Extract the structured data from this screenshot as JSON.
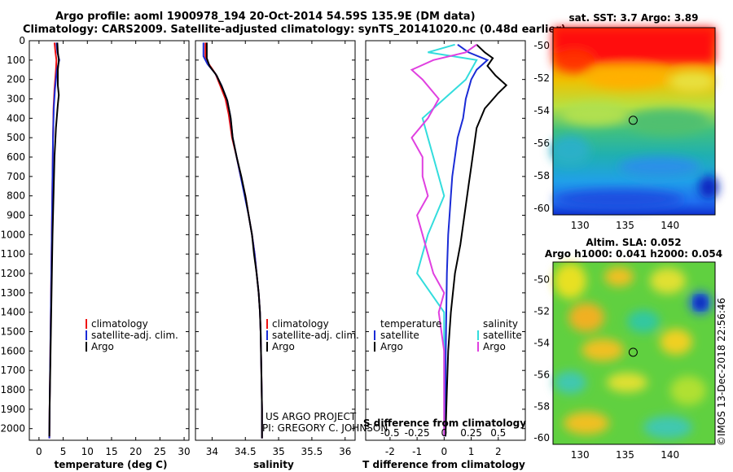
{
  "header": {
    "line1": "Argo profile: aoml 1900978_194 20-Oct-2014 54.59S 135.9E (DM data)",
    "line2": "Climatology: CARS2009. Satellite-adjusted climatology: synTS_20141020.nc (0.48d earlier)"
  },
  "credits": {
    "project": "US ARGO PROJECT",
    "pi": "PI: GREGORY C. JOHNSON",
    "imos": "©IMOS 13-Dec-2018 22:56:46"
  },
  "colors": {
    "argo": "#000000",
    "clim": "#ee1111",
    "sat": "#1a2bd6",
    "sal_sat": "#33dddd",
    "sal_argo": "#e040e0"
  },
  "chart_data": [
    {
      "type": "line",
      "panel": "temperature",
      "xlabel": "temperature (deg C)",
      "xlim": [
        -2,
        31
      ],
      "ylim": [
        2060,
        0
      ],
      "xticks": [
        0,
        5,
        10,
        15,
        20,
        25,
        30
      ],
      "yticks": [
        0,
        100,
        200,
        300,
        400,
        500,
        600,
        700,
        800,
        900,
        1000,
        1100,
        1200,
        1300,
        1400,
        1500,
        1600,
        1700,
        1800,
        1900,
        2000
      ],
      "legend": [
        "climatology",
        "satellite-adj. clim.",
        "Argo"
      ],
      "series": [
        {
          "name": "climatology",
          "color": "#ee1111",
          "points": [
            [
              3.2,
              10
            ],
            [
              3.4,
              60
            ],
            [
              3.6,
              100
            ],
            [
              3.5,
              150
            ],
            [
              3.2,
              250
            ],
            [
              3.0,
              350
            ],
            [
              2.9,
              500
            ],
            [
              2.8,
              700
            ],
            [
              2.7,
              900
            ],
            [
              2.6,
              1100
            ],
            [
              2.5,
              1300
            ],
            [
              2.4,
              1500
            ],
            [
              2.3,
              1700
            ],
            [
              2.2,
              1900
            ],
            [
              2.15,
              2050
            ]
          ]
        },
        {
          "name": "satellite-adj. clim.",
          "color": "#1a2bd6",
          "points": [
            [
              3.6,
              10
            ],
            [
              3.8,
              60
            ],
            [
              4.2,
              100
            ],
            [
              3.7,
              150
            ],
            [
              3.3,
              250
            ],
            [
              3.05,
              350
            ],
            [
              2.9,
              500
            ],
            [
              2.8,
              700
            ],
            [
              2.7,
              900
            ],
            [
              2.6,
              1100
            ],
            [
              2.5,
              1300
            ],
            [
              2.4,
              1500
            ],
            [
              2.3,
              1700
            ],
            [
              2.2,
              1900
            ],
            [
              2.15,
              2050
            ]
          ]
        },
        {
          "name": "Argo",
          "color": "#000000",
          "points": [
            [
              3.8,
              10
            ],
            [
              3.9,
              60
            ],
            [
              4.1,
              100
            ],
            [
              3.9,
              150
            ],
            [
              3.9,
              230
            ],
            [
              4.1,
              280
            ],
            [
              3.9,
              330
            ],
            [
              3.5,
              450
            ],
            [
              3.2,
              600
            ],
            [
              3.0,
              800
            ],
            [
              2.8,
              1000
            ],
            [
              2.6,
              1300
            ],
            [
              2.4,
              1600
            ],
            [
              2.2,
              1900
            ],
            [
              2.15,
              2040
            ]
          ]
        }
      ]
    },
    {
      "type": "line",
      "panel": "salinity",
      "xlabel": "salinity",
      "xlim": [
        33.75,
        36.15
      ],
      "ylim": [
        2060,
        0
      ],
      "xticks": [
        34,
        34.5,
        35,
        35.5,
        36
      ],
      "legend": [
        "climatology",
        "satellite-adj. clim.",
        "Argo"
      ],
      "series": [
        {
          "name": "climatology",
          "color": "#ee1111",
          "points": [
            [
              33.9,
              10
            ],
            [
              33.9,
              80
            ],
            [
              33.95,
              120
            ],
            [
              34.05,
              170
            ],
            [
              34.12,
              230
            ],
            [
              34.2,
              300
            ],
            [
              34.25,
              380
            ],
            [
              34.3,
              500
            ],
            [
              34.37,
              600
            ],
            [
              34.43,
              700
            ],
            [
              34.5,
              800
            ],
            [
              34.55,
              900
            ],
            [
              34.6,
              1000
            ],
            [
              34.64,
              1100
            ],
            [
              34.67,
              1200
            ],
            [
              34.7,
              1300
            ],
            [
              34.72,
              1400
            ],
            [
              34.73,
              1500
            ],
            [
              34.74,
              1700
            ],
            [
              34.75,
              1900
            ],
            [
              34.75,
              2050
            ]
          ]
        },
        {
          "name": "satellite-adj. clim.",
          "color": "#1a2bd6",
          "points": [
            [
              33.87,
              10
            ],
            [
              33.87,
              80
            ],
            [
              33.93,
              120
            ],
            [
              34.05,
              170
            ],
            [
              34.14,
              230
            ],
            [
              34.22,
              300
            ],
            [
              34.27,
              380
            ],
            [
              34.31,
              500
            ],
            [
              34.37,
              600
            ],
            [
              34.43,
              700
            ],
            [
              34.49,
              800
            ],
            [
              34.55,
              900
            ],
            [
              34.6,
              1000
            ],
            [
              34.64,
              1100
            ],
            [
              34.67,
              1200
            ],
            [
              34.7,
              1300
            ],
            [
              34.72,
              1400
            ],
            [
              34.73,
              1500
            ],
            [
              34.74,
              1700
            ],
            [
              34.75,
              1900
            ],
            [
              34.75,
              2050
            ]
          ]
        },
        {
          "name": "Argo",
          "color": "#000000",
          "points": [
            [
              33.92,
              10
            ],
            [
              33.92,
              90
            ],
            [
              33.96,
              130
            ],
            [
              34.07,
              180
            ],
            [
              34.15,
              240
            ],
            [
              34.23,
              310
            ],
            [
              34.28,
              400
            ],
            [
              34.31,
              500
            ],
            [
              34.37,
              600
            ],
            [
              34.44,
              700
            ],
            [
              34.5,
              800
            ],
            [
              34.55,
              900
            ],
            [
              34.6,
              1000
            ],
            [
              34.63,
              1100
            ],
            [
              34.67,
              1200
            ],
            [
              34.7,
              1300
            ],
            [
              34.72,
              1400
            ],
            [
              34.73,
              1500
            ],
            [
              34.74,
              1700
            ],
            [
              34.75,
              1900
            ],
            [
              34.75,
              2050
            ]
          ]
        }
      ]
    },
    {
      "type": "line",
      "panel": "difference",
      "xlabel": "T difference from climatology",
      "xlabel_top": "S difference from climatology",
      "xlim": [
        -2.9,
        3.0
      ],
      "ylim": [
        2060,
        0
      ],
      "xticks": [
        -2,
        -1,
        0,
        1,
        2
      ],
      "sticks": [
        {
          "v": -0.5,
          "label": "-0.5"
        },
        {
          "v": -0.25,
          "label": "-0.25"
        },
        {
          "v": 0,
          "label": "0"
        },
        {
          "v": 0.25,
          "label": "0.25"
        },
        {
          "v": 0.5,
          "label": "0.5"
        }
      ],
      "s_scale": 4,
      "legend_left_title": "temperature",
      "legend_right_title": "salinity",
      "legend_left": [
        "satellite",
        "Argo"
      ],
      "legend_right": [
        "satellite",
        "Argo"
      ],
      "series": [
        {
          "name": "T satellite",
          "color": "#1a2bd6",
          "points": [
            [
              0.5,
              20
            ],
            [
              0.9,
              60
            ],
            [
              1.6,
              100
            ],
            [
              1.2,
              150
            ],
            [
              1.0,
              200
            ],
            [
              0.8,
              300
            ],
            [
              0.7,
              400
            ],
            [
              0.5,
              500
            ],
            [
              0.4,
              600
            ],
            [
              0.3,
              700
            ],
            [
              0.25,
              800
            ],
            [
              0.2,
              900
            ],
            [
              0.15,
              1000
            ],
            [
              0.1,
              1200
            ],
            [
              0.08,
              1400
            ],
            [
              0.06,
              1600
            ],
            [
              0.05,
              1800
            ],
            [
              0.05,
              2040
            ]
          ]
        },
        {
          "name": "T Argo",
          "color": "#000000",
          "points": [
            [
              1.2,
              20
            ],
            [
              1.5,
              60
            ],
            [
              1.8,
              90
            ],
            [
              1.6,
              130
            ],
            [
              1.9,
              180
            ],
            [
              2.3,
              230
            ],
            [
              2.0,
              270
            ],
            [
              1.5,
              350
            ],
            [
              1.2,
              450
            ],
            [
              1.1,
              550
            ],
            [
              1.0,
              650
            ],
            [
              0.9,
              750
            ],
            [
              0.8,
              850
            ],
            [
              0.7,
              950
            ],
            [
              0.6,
              1050
            ],
            [
              0.4,
              1200
            ],
            [
              0.25,
              1400
            ],
            [
              0.15,
              1600
            ],
            [
              0.1,
              1800
            ],
            [
              0.05,
              2040
            ]
          ]
        },
        {
          "name": "S satellite",
          "color": "#33dddd",
          "points": [
            [
              0.1,
              20
            ],
            [
              -0.15,
              60
            ],
            [
              0.3,
              100
            ],
            [
              0.2,
              200
            ],
            [
              0.0,
              300
            ],
            [
              -0.2,
              400
            ],
            [
              -0.15,
              500
            ],
            [
              -0.1,
              600
            ],
            [
              0.0,
              800
            ],
            [
              -0.15,
              1000
            ],
            [
              -0.25,
              1200
            ],
            [
              0.0,
              1400
            ],
            [
              0.0,
              2040
            ]
          ]
        },
        {
          "name": "S Argo",
          "color": "#e040e0",
          "points": [
            [
              0.3,
              20
            ],
            [
              0.2,
              60
            ],
            [
              -0.1,
              100
            ],
            [
              -0.3,
              150
            ],
            [
              -0.2,
              200
            ],
            [
              -0.05,
              300
            ],
            [
              -0.15,
              400
            ],
            [
              -0.3,
              500
            ],
            [
              -0.2,
              600
            ],
            [
              -0.2,
              700
            ],
            [
              -0.15,
              800
            ],
            [
              -0.25,
              900
            ],
            [
              -0.2,
              1000
            ],
            [
              -0.15,
              1100
            ],
            [
              -0.1,
              1200
            ],
            [
              0.0,
              1300
            ],
            [
              -0.05,
              1400
            ],
            [
              0.0,
              1600
            ],
            [
              0.0,
              2040
            ]
          ]
        }
      ]
    },
    {
      "type": "heatmap",
      "panel": "sst_map",
      "title": "sat. SST: 3.7 Argo: 3.89",
      "xlim": [
        127,
        145
      ],
      "ylim": [
        -60.4,
        -48.9
      ],
      "xticks": [
        130,
        135,
        140
      ],
      "yticks": [
        -50,
        -52,
        -54,
        -56,
        -58,
        -60
      ],
      "argo_position": [
        135.9,
        -54.59
      ]
    },
    {
      "type": "heatmap",
      "panel": "sla_map",
      "title": "Altim. SLA: 0.052",
      "subtitle": "Argo h1000: 0.041 h2000: 0.054",
      "xlim": [
        127,
        145
      ],
      "ylim": [
        -60.4,
        -48.9
      ],
      "xticks": [
        130,
        135,
        140
      ],
      "yticks": [
        -50,
        -52,
        -54,
        -56,
        -58,
        -60
      ],
      "argo_position": [
        135.9,
        -54.59
      ]
    }
  ]
}
